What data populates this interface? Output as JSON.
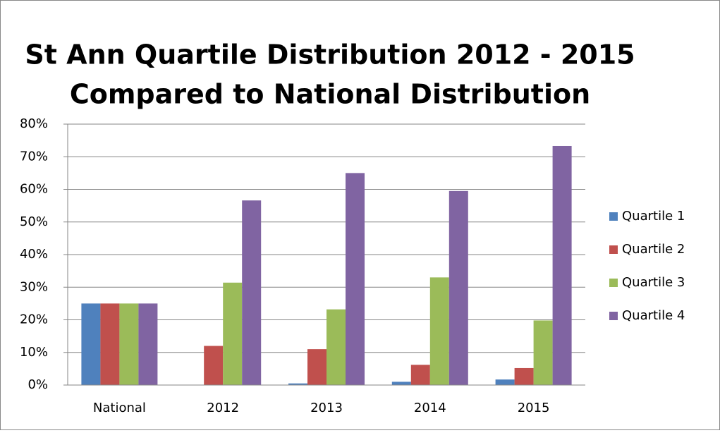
{
  "chart_data": {
    "type": "bar",
    "title": "St Ann Quartile Distribution 2012 - 2015",
    "subtitle": "Compared to National Distribution",
    "categories": [
      "National",
      "2012",
      "2013",
      "2014",
      "2015"
    ],
    "series": [
      {
        "name": "Quartile 1",
        "color": "#4f81bd",
        "values": [
          25,
          0,
          0.5,
          1,
          1.7
        ]
      },
      {
        "name": "Quartile 2",
        "color": "#c0504d",
        "values": [
          25,
          12,
          11,
          6.2,
          5.2
        ]
      },
      {
        "name": "Quartile 3",
        "color": "#9bbb59",
        "values": [
          25,
          31.4,
          23.2,
          33,
          19.8
        ]
      },
      {
        "name": "Quartile 4",
        "color": "#8064a2",
        "values": [
          25,
          56.6,
          65,
          59.5,
          73.3
        ]
      }
    ],
    "ylim": [
      0,
      80
    ],
    "yticks": [
      {
        "value": 0,
        "label": "0%"
      },
      {
        "value": 10,
        "label": "10%"
      },
      {
        "value": 20,
        "label": "20%"
      },
      {
        "value": 30,
        "label": "30%"
      },
      {
        "value": 40,
        "label": "40%"
      },
      {
        "value": 50,
        "label": "50%"
      },
      {
        "value": 60,
        "label": "60%"
      },
      {
        "value": 70,
        "label": "70%"
      },
      {
        "value": 80,
        "label": "80%"
      }
    ],
    "grid": true,
    "legend": "right"
  }
}
